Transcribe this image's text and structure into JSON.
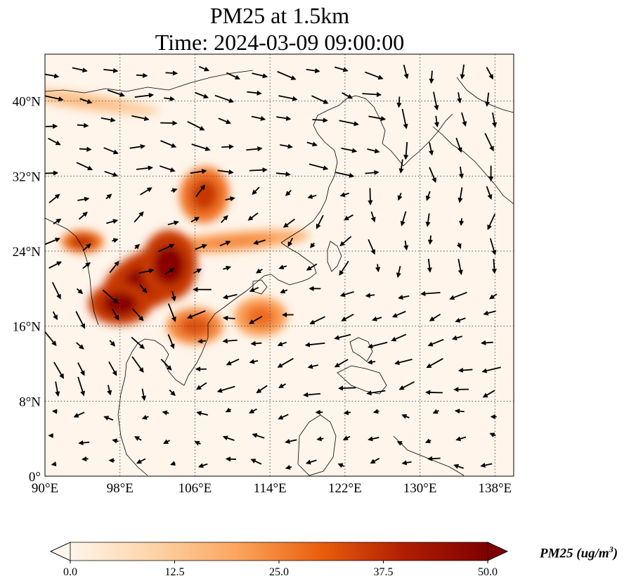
{
  "title": {
    "line1": "PM25 at 1.5km",
    "line2": "Time: 2024-03-09 09:00:00"
  },
  "map": {
    "projection": "PlateCarree",
    "lon_range": [
      90,
      140
    ],
    "lat_range": [
      0,
      45
    ],
    "x_ticks": [
      {
        "lon": 90,
        "label": "90°E"
      },
      {
        "lon": 98,
        "label": "98°E"
      },
      {
        "lon": 106,
        "label": "106°E"
      },
      {
        "lon": 114,
        "label": "114°E"
      },
      {
        "lon": 122,
        "label": "122°E"
      },
      {
        "lon": 130,
        "label": "130°E"
      },
      {
        "lon": 138,
        "label": "138°E"
      }
    ],
    "y_ticks": [
      {
        "lat": 0,
        "label": "0°"
      },
      {
        "lat": 8,
        "label": "8°N"
      },
      {
        "lat": 16,
        "label": "16°N"
      },
      {
        "lat": 24,
        "label": "24°N"
      },
      {
        "lat": 32,
        "label": "32°N"
      },
      {
        "lat": 40,
        "label": "40°N"
      }
    ],
    "gridlines": "dotted",
    "background_color": "#fff5eb",
    "pollution_plumes": [
      {
        "region": "Yunnan / Myanmar / Northern Laos / Northern Thailand",
        "lon": 101,
        "lat": 21,
        "level": 48
      },
      {
        "region": "Sichuan Basin",
        "lon": 107,
        "lat": 30,
        "level": 36
      },
      {
        "region": "Northern Myanmar",
        "lon": 94,
        "lat": 25,
        "level": 38
      },
      {
        "region": "Central Vietnam / Laos",
        "lon": 106,
        "lat": 16,
        "level": 32
      },
      {
        "region": "South China Sea near Hainan",
        "lon": 113,
        "lat": 17,
        "level": 28
      },
      {
        "region": "Southern China band",
        "lon": 110,
        "lat": 25,
        "level": 24
      },
      {
        "region": "Northwest China band",
        "lon": 94,
        "lat": 40,
        "level": 15
      }
    ]
  },
  "colorbar": {
    "min": 0.0,
    "max": 50.0,
    "ticks": [
      "0.0",
      "12.5",
      "25.0",
      "37.5",
      "50.0"
    ],
    "label_main": "PM25 (ug/m",
    "label_sup": "3",
    "label_close": ")",
    "colors": [
      "#fff5eb",
      "#fdd3a7",
      "#fca55d",
      "#e95e0d",
      "#b11d02",
      "#7f0000"
    ]
  }
}
